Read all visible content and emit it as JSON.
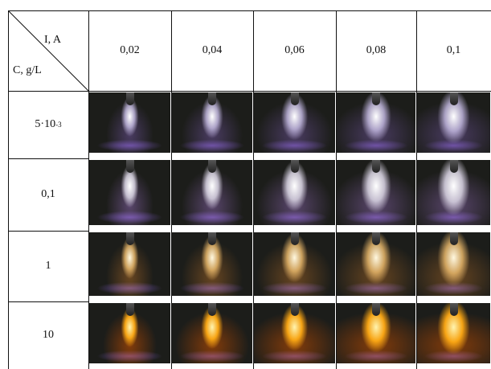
{
  "table": {
    "corner": {
      "top": "I,   A",
      "bottom": "C, g/L"
    },
    "columns": [
      "0,02",
      "0,04",
      "0,06",
      "0,08",
      "0,1"
    ],
    "rows": [
      {
        "label": "5·10",
        "sup": "-3"
      },
      {
        "label": "0,1"
      },
      {
        "label": "1"
      },
      {
        "label": "10"
      }
    ]
  }
}
